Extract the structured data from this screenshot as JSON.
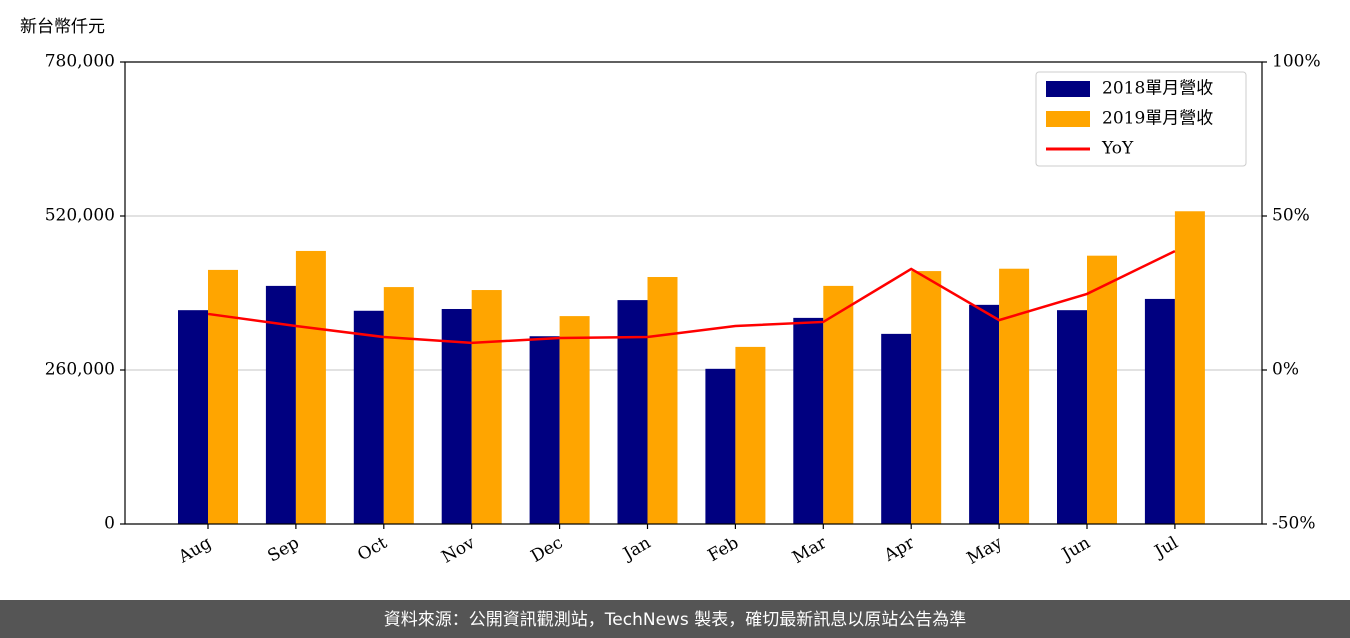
{
  "chart_data": {
    "type": "bar",
    "unit_label": "新台幣仟元",
    "categories": [
      "Aug",
      "Sep",
      "Oct",
      "Nov",
      "Dec",
      "Jan",
      "Feb",
      "Mar",
      "Apr",
      "May",
      "Jun",
      "Jul"
    ],
    "series": [
      {
        "name": "2018單月營收",
        "color": "#000080",
        "values": [
          361000,
          402000,
          360000,
          363000,
          317000,
          378000,
          262000,
          348000,
          321000,
          370000,
          361000,
          380000
        ]
      },
      {
        "name": "2019單月營收",
        "color": "#ffa500",
        "values": [
          429000,
          461000,
          400000,
          395000,
          351000,
          417000,
          299000,
          402000,
          427000,
          431000,
          453000,
          528000
        ]
      },
      {
        "name": "YoY",
        "color": "#ff0000",
        "type": "line",
        "axis": "y2",
        "values": [
          18.2,
          14.3,
          10.7,
          8.8,
          10.4,
          10.7,
          14.3,
          15.6,
          32.8,
          16.2,
          24.7,
          38.6
        ]
      }
    ],
    "ylim": [
      0,
      780000
    ],
    "yticks": [
      0,
      {
        "value": 260000,
        "label": "260,000"
      },
      {
        "value": 520000,
        "label": "520,000"
      },
      {
        "value": 780000,
        "label": "780,000"
      }
    ],
    "y2lim": [
      -50,
      100
    ],
    "y2ticks": [
      {
        "value": -50,
        "label": "-50%"
      },
      {
        "value": 0,
        "label": "0%"
      },
      {
        "value": 50,
        "label": "50%"
      },
      {
        "value": 100,
        "label": "100%"
      }
    ],
    "grid": true,
    "legend": "upper right",
    "source": "資料來源：公開資訊觀測站，TechNews 製表，確切最新訊息以原站公告為準"
  }
}
